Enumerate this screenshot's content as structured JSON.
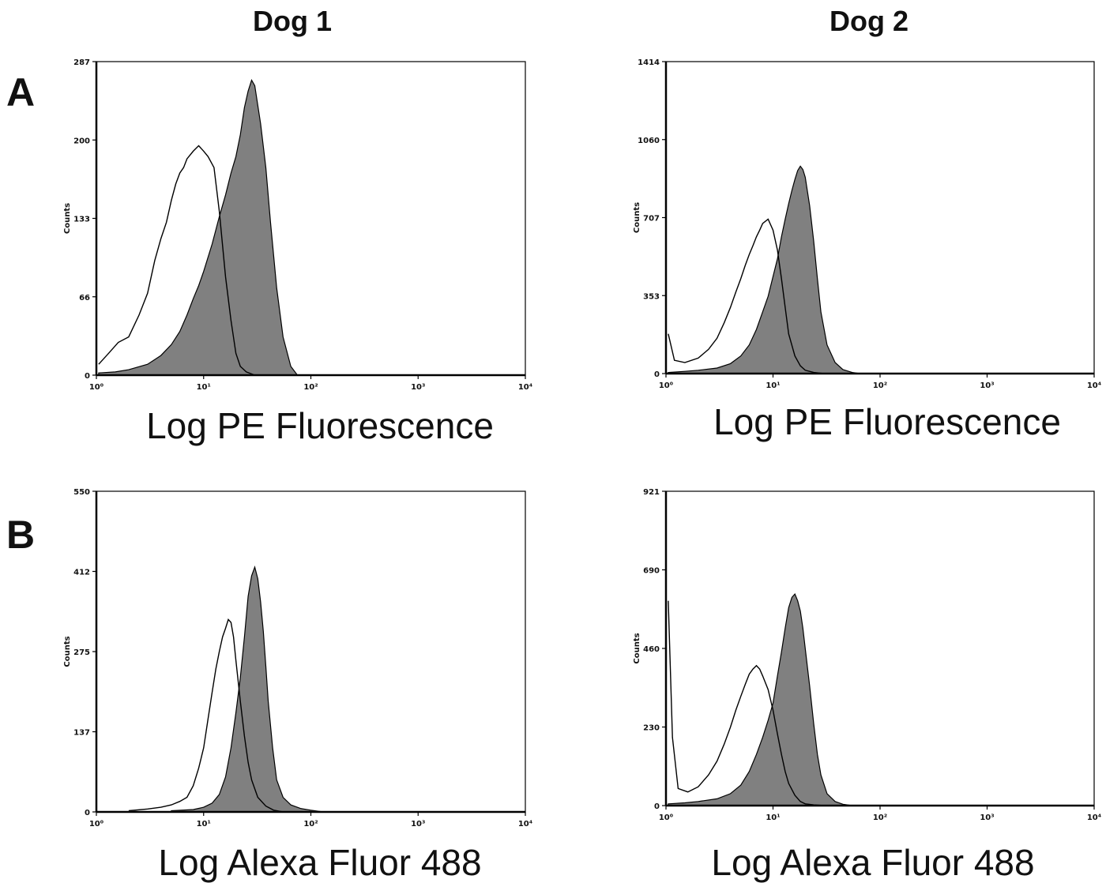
{
  "columns": [
    "Dog 1",
    "Dog 2"
  ],
  "rows": [
    "A",
    "B"
  ],
  "colors": {
    "filled": "#808080",
    "outline": "#000000",
    "axis": "#000000"
  },
  "chart_data": [
    {
      "id": "A-dog1",
      "type": "area",
      "column": "Dog 1",
      "row": "A",
      "xlabel": "Log PE Fluorescence",
      "ylabel": "Counts",
      "x_scale": "log",
      "xlim": [
        1,
        10000
      ],
      "x_ticks": [
        "10⁰",
        "10¹",
        "10²",
        "10³",
        "10⁴"
      ],
      "ylim": [
        0,
        287
      ],
      "y_ticks": [
        "0",
        "66",
        "133",
        "200",
        "287"
      ],
      "series": [
        {
          "style": "outline",
          "x": [
            1.05,
            1.3,
            1.6,
            2.0,
            2.5,
            3.0,
            3.5,
            4.0,
            4.5,
            5.0,
            5.5,
            6.0,
            6.5,
            7.0,
            8.0,
            9.0,
            10.0,
            11.0,
            12.5,
            14.0,
            16.0,
            18.0,
            20.0,
            22.0,
            25.0,
            30.0
          ],
          "y": [
            10,
            20,
            30,
            35,
            55,
            75,
            105,
            125,
            140,
            160,
            175,
            185,
            190,
            198,
            205,
            210,
            205,
            200,
            190,
            150,
            90,
            50,
            20,
            8,
            3,
            0
          ]
        },
        {
          "style": "filled",
          "x": [
            1.05,
            1.5,
            2.0,
            3.0,
            4.0,
            5.0,
            6.0,
            7.0,
            8.0,
            9.0,
            10.0,
            12.0,
            14.0,
            16.0,
            18.0,
            20.0,
            22.0,
            24.0,
            26.0,
            28.0,
            30.0,
            34.0,
            38.0,
            42.0,
            48.0,
            55.0,
            65.0,
            75.0
          ],
          "y": [
            2,
            3,
            5,
            10,
            18,
            28,
            40,
            55,
            70,
            82,
            95,
            120,
            145,
            165,
            185,
            200,
            220,
            245,
            260,
            270,
            265,
            230,
            190,
            140,
            80,
            35,
            8,
            0
          ]
        }
      ]
    },
    {
      "id": "A-dog2",
      "type": "area",
      "column": "Dog 2",
      "row": "A",
      "xlabel": "Log PE Fluorescence",
      "ylabel": "Counts",
      "x_scale": "log",
      "xlim": [
        1,
        10000
      ],
      "x_ticks": [
        "10⁰",
        "10¹",
        "10²",
        "10³",
        "10⁴"
      ],
      "ylim": [
        0,
        1414
      ],
      "y_ticks": [
        "0",
        "353",
        "707",
        "1060",
        "1414"
      ],
      "series": [
        {
          "style": "outline",
          "x": [
            1.05,
            1.2,
            1.5,
            2.0,
            2.5,
            3.0,
            3.5,
            4.0,
            4.5,
            5.0,
            5.5,
            6.0,
            6.5,
            7.0,
            7.5,
            8.0,
            9.0,
            10.0,
            11.0,
            12.0,
            13.0,
            14.0,
            16.0,
            18.0,
            20.0,
            24.0,
            30.0
          ],
          "y": [
            180,
            60,
            50,
            70,
            110,
            160,
            230,
            300,
            370,
            430,
            490,
            540,
            580,
            620,
            650,
            680,
            700,
            650,
            560,
            430,
            300,
            180,
            80,
            35,
            15,
            5,
            0
          ]
        },
        {
          "style": "filled",
          "x": [
            1.05,
            1.5,
            2.0,
            3.0,
            4.0,
            5.0,
            6.0,
            7.0,
            8.0,
            9.0,
            10.0,
            11.0,
            12.0,
            13.0,
            14.0,
            15.0,
            16.0,
            17.0,
            18.0,
            19.0,
            20.0,
            22.0,
            24.0,
            26.0,
            28.0,
            32.0,
            38.0,
            45.0,
            55.0,
            65.0
          ],
          "y": [
            5,
            10,
            15,
            25,
            45,
            80,
            130,
            200,
            280,
            350,
            440,
            520,
            620,
            700,
            770,
            830,
            880,
            920,
            940,
            925,
            890,
            760,
            600,
            430,
            280,
            130,
            50,
            18,
            5,
            0
          ]
        }
      ]
    },
    {
      "id": "B-dog1",
      "type": "area",
      "column": "Dog 1",
      "row": "B",
      "xlabel": "Log Alexa Fluor 488",
      "ylabel": "Counts",
      "x_scale": "log",
      "xlim": [
        1,
        10000
      ],
      "x_ticks": [
        "10⁰",
        "10¹",
        "10²",
        "10³",
        "10⁴"
      ],
      "ylim": [
        0,
        550
      ],
      "y_ticks": [
        "0",
        "137",
        "275",
        "412",
        "550"
      ],
      "series": [
        {
          "style": "outline",
          "x": [
            2.0,
            3.0,
            4.0,
            5.0,
            6.0,
            7.0,
            8.0,
            9.0,
            10.0,
            11.0,
            12.0,
            13.0,
            14.0,
            15.0,
            16.0,
            17.0,
            18.0,
            19.0,
            20.0,
            22.0,
            24.0,
            26.0,
            28.0,
            32.0,
            38.0,
            45.0,
            55.0
          ],
          "y": [
            2,
            5,
            8,
            12,
            18,
            25,
            45,
            75,
            110,
            160,
            205,
            245,
            275,
            300,
            315,
            330,
            325,
            300,
            260,
            190,
            130,
            85,
            55,
            25,
            10,
            3,
            0
          ]
        },
        {
          "style": "filled",
          "x": [
            5.0,
            8.0,
            10.0,
            12.0,
            14.0,
            16.0,
            18.0,
            20.0,
            22.0,
            24.0,
            26.0,
            28.0,
            30.0,
            32.0,
            34.0,
            36.0,
            38.0,
            40.0,
            44.0,
            48.0,
            55.0,
            65.0,
            80.0,
            100.0,
            130.0
          ],
          "y": [
            2,
            4,
            8,
            15,
            30,
            60,
            110,
            170,
            230,
            300,
            370,
            405,
            420,
            400,
            360,
            310,
            250,
            190,
            110,
            55,
            25,
            12,
            6,
            3,
            0
          ]
        }
      ]
    },
    {
      "id": "B-dog2",
      "type": "area",
      "column": "Dog 2",
      "row": "B",
      "xlabel": "Log Alexa Fluor 488",
      "ylabel": "Counts",
      "x_scale": "log",
      "xlim": [
        1,
        10000
      ],
      "x_ticks": [
        "10⁰",
        "10¹",
        "10²",
        "10³",
        "10⁴"
      ],
      "ylim": [
        0,
        921
      ],
      "y_ticks": [
        "0",
        "230",
        "460",
        "690",
        "921"
      ],
      "series": [
        {
          "style": "outline",
          "x": [
            1.05,
            1.15,
            1.3,
            1.6,
            2.0,
            2.5,
            3.0,
            3.5,
            4.0,
            4.5,
            5.0,
            5.5,
            6.0,
            6.5,
            7.0,
            7.5,
            8.0,
            9.0,
            10.0,
            11.0,
            12.0,
            13.0,
            14.0,
            16.0,
            18.0,
            20.0,
            24.0,
            30.0
          ],
          "y": [
            600,
            200,
            50,
            40,
            55,
            90,
            130,
            180,
            230,
            280,
            320,
            355,
            385,
            400,
            410,
            400,
            380,
            340,
            280,
            210,
            150,
            100,
            65,
            30,
            12,
            5,
            2,
            0
          ]
        },
        {
          "style": "filled",
          "x": [
            1.05,
            1.5,
            2.0,
            3.0,
            4.0,
            5.0,
            6.0,
            7.0,
            8.0,
            9.0,
            10.0,
            11.0,
            12.0,
            13.0,
            14.0,
            15.0,
            16.0,
            17.0,
            18.0,
            19.0,
            20.0,
            22.0,
            24.0,
            26.0,
            28.0,
            32.0,
            38.0,
            45.0,
            55.0
          ],
          "y": [
            5,
            8,
            12,
            20,
            35,
            60,
            100,
            150,
            200,
            250,
            300,
            380,
            450,
            520,
            580,
            610,
            620,
            600,
            570,
            520,
            460,
            350,
            240,
            150,
            90,
            35,
            12,
            4,
            0
          ]
        }
      ]
    }
  ]
}
